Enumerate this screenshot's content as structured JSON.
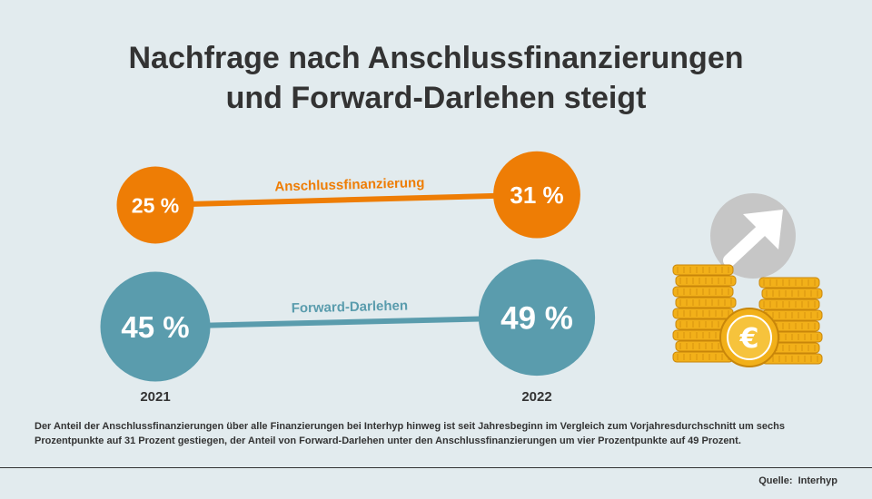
{
  "title": {
    "line1": "Nachfrage nach Anschlussfinanzierungen",
    "line2": "und Forward-Darlehen steigt"
  },
  "colors": {
    "background": "#e2ebee",
    "orange": "#ee7d05",
    "teal": "#5a9cad",
    "text": "#333333",
    "coin": "#f2b019",
    "arrow_circle": "#c6c6c6"
  },
  "chart_data": {
    "type": "line",
    "categories": [
      "2021",
      "2022"
    ],
    "series": [
      {
        "name": "Anschlussfinanzierung",
        "values": [
          25,
          31
        ],
        "labels": [
          "25 %",
          "31 %"
        ],
        "color": "#ee7d05"
      },
      {
        "name": "Forward-Darlehen",
        "values": [
          45,
          49
        ],
        "labels": [
          "45 %",
          "49 %"
        ],
        "color": "#5a9cad"
      }
    ],
    "unit": "%"
  },
  "description": "Der Anteil der Anschlussfinanzierungen über alle Finanzierungen bei Interhyp hinweg ist seit Jahresbeginn im Vergleich zum Vorjahresdurchschnitt um sechs Prozentpunkte auf 31 Prozent gestiegen, der Anteil von Forward-Darlehen unter den Anschlussfinanzierungen um vier Prozentpunkte auf 49 Prozent.",
  "source": {
    "label": "Quelle:",
    "name": "Interhyp"
  },
  "illustration": {
    "coin_symbol": "€",
    "arrow_icon": "arrow-up-right-icon"
  }
}
